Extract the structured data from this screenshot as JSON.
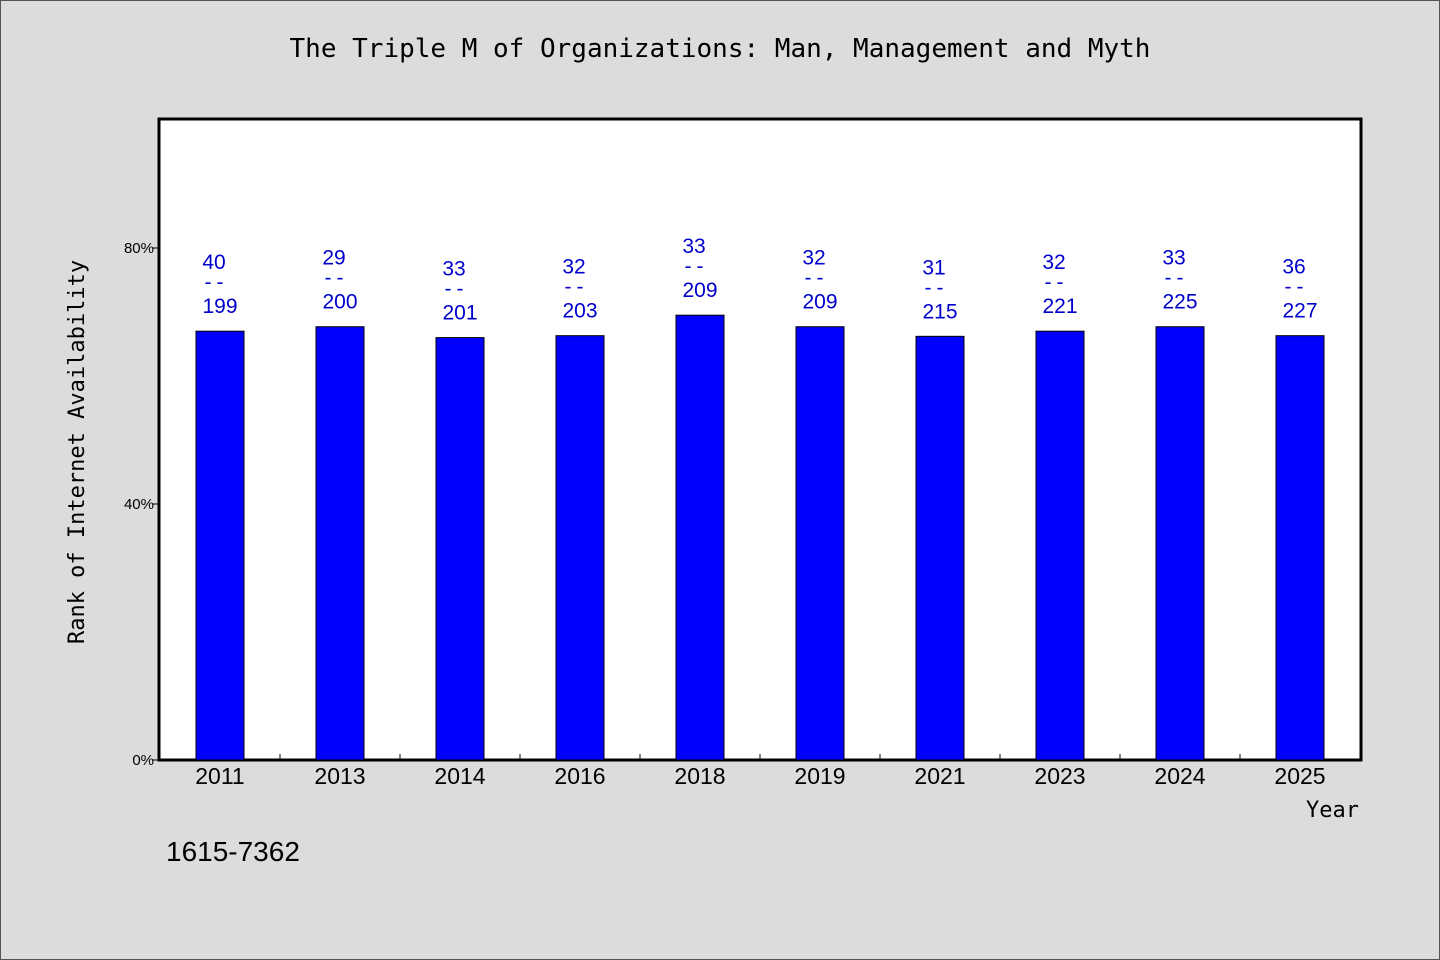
{
  "chart_data": {
    "type": "bar",
    "title": "The Triple M of Organizations: Man, Management and Myth",
    "xlabel": "Year",
    "ylabel": "Rank of Internet Availability",
    "ylim": [
      0,
      100
    ],
    "yticks": [
      0,
      40,
      80
    ],
    "ytick_labels": [
      "0%",
      "40%",
      "80%"
    ],
    "categories": [
      "2011",
      "2013",
      "2014",
      "2016",
      "2018",
      "2019",
      "2021",
      "2023",
      "2024",
      "2025"
    ],
    "values": [
      67,
      67.7,
      66,
      66.3,
      69.5,
      67.7,
      66.2,
      67,
      67.7,
      66.3
    ],
    "numerators": [
      "40",
      "29",
      "33",
      "32",
      "33",
      "32",
      "31",
      "32",
      "33",
      "36"
    ],
    "denominators": [
      "199",
      "200",
      "201",
      "203",
      "209",
      "209",
      "215",
      "221",
      "225",
      "227"
    ],
    "separator": "--",
    "bar_color": "#0000ff",
    "label_color": "#0000cc",
    "grid": false
  },
  "footer": {
    "code": "1615-7362"
  }
}
